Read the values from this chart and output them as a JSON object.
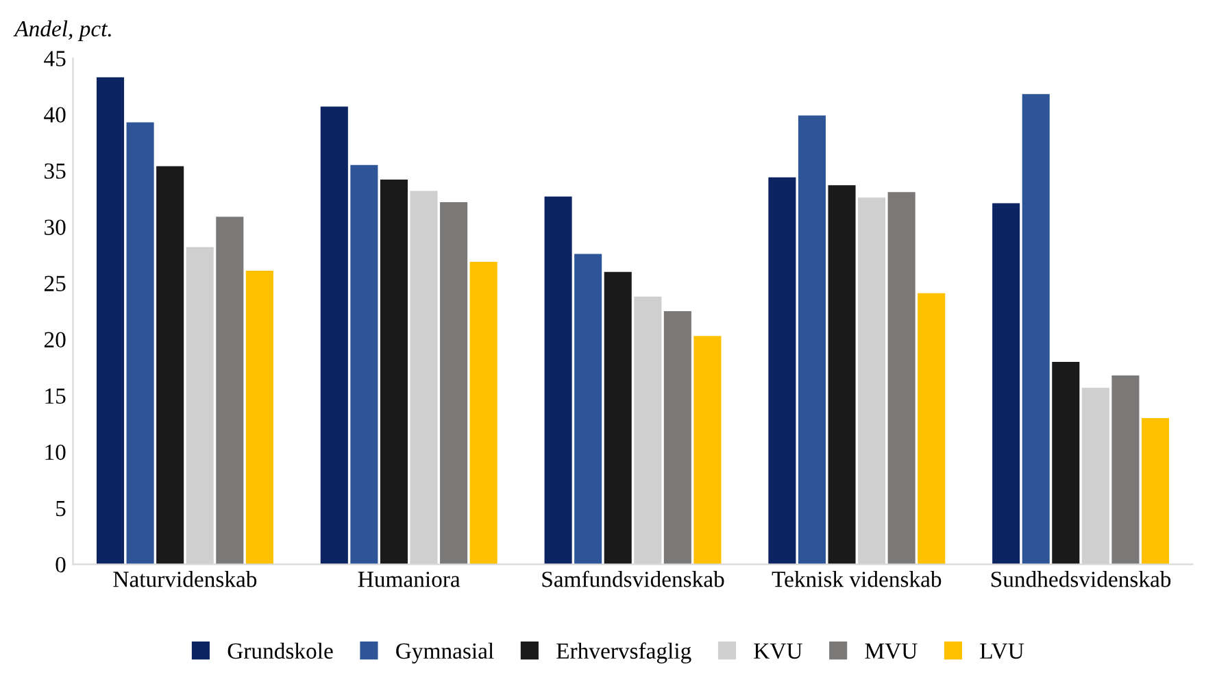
{
  "chart_data": {
    "type": "bar",
    "ylabel": "Andel, pct.",
    "categories": [
      "Naturvidenskab",
      "Humaniora",
      "Samfundsvidenskab",
      "Teknisk videnskab",
      "Sundhedsvidenskab"
    ],
    "series": [
      {
        "name": "Grundskole",
        "color": "#0d2462",
        "values": [
          43.3,
          40.7,
          32.7,
          34.4,
          32.1
        ]
      },
      {
        "name": "Gymnasial",
        "color": "#2e5597",
        "values": [
          39.3,
          35.5,
          27.6,
          39.9,
          41.8
        ]
      },
      {
        "name": "Erhvervsfaglig",
        "color": "#1a1a1a",
        "values": [
          35.4,
          34.2,
          26.0,
          33.7,
          18.0
        ]
      },
      {
        "name": "KVU",
        "color": "#cfcfcf",
        "values": [
          28.2,
          33.2,
          23.8,
          32.6,
          15.7
        ]
      },
      {
        "name": "MVU",
        "color": "#7b7878",
        "values": [
          30.9,
          32.2,
          22.5,
          33.1,
          16.8
        ]
      },
      {
        "name": "LVU",
        "color": "#ffc000",
        "values": [
          26.1,
          26.9,
          20.3,
          24.1,
          13.0
        ]
      }
    ],
    "ylim": [
      0,
      45
    ],
    "yticks": [
      0,
      5,
      10,
      15,
      20,
      25,
      30,
      35,
      40,
      45
    ],
    "grid": false,
    "legend": "bottom"
  }
}
